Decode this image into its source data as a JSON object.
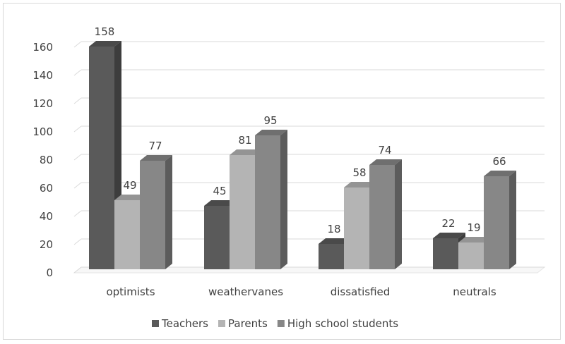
{
  "chart_data": {
    "type": "bar",
    "style": "3d-clustered-column",
    "categories": [
      "optimists",
      "weathervanes",
      "dissatisfied",
      "neutrals"
    ],
    "series": [
      {
        "name": "Teachers",
        "values": [
          158,
          45,
          18,
          22
        ],
        "color": "#5a5a5a"
      },
      {
        "name": "Parents",
        "values": [
          49,
          81,
          58,
          19
        ],
        "color": "#b4b4b4"
      },
      {
        "name": "High school students",
        "values": [
          77,
          95,
          74,
          66
        ],
        "color": "#878787"
      }
    ],
    "y_ticks": [
      0,
      20,
      40,
      60,
      80,
      100,
      120,
      140,
      160
    ],
    "ylim": [
      0,
      160
    ],
    "grid": true,
    "legend_position": "bottom",
    "data_labels": true
  }
}
